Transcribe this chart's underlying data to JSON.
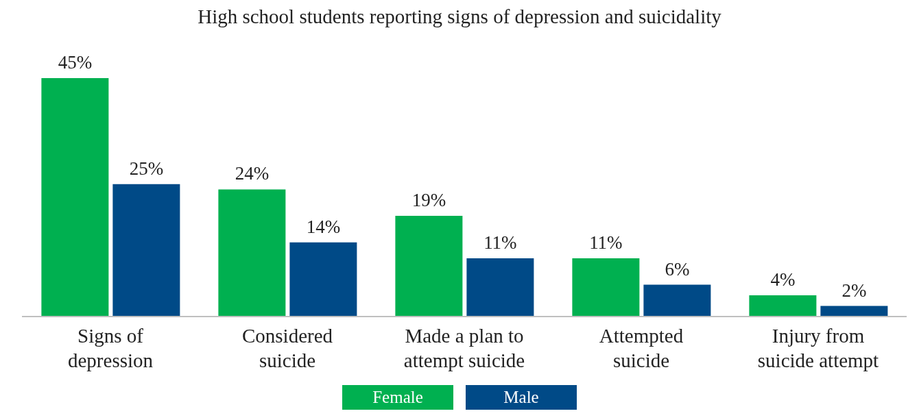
{
  "chart_data": {
    "type": "bar",
    "title": "High school students reporting signs of depression and suicidality",
    "categories": [
      "Signs of depression",
      "Considered suicide",
      "Made a plan to attempt suicide",
      "Attempted suicide",
      "Injury from suicide attempt"
    ],
    "series": [
      {
        "name": "Female",
        "color": "#00b050",
        "values": [
          45,
          24,
          19,
          11,
          4
        ],
        "value_labels": [
          "45%",
          "24%",
          "19%",
          "11%",
          "4%"
        ]
      },
      {
        "name": "Male",
        "color": "#004a87",
        "values": [
          25,
          14,
          11,
          6,
          2
        ],
        "value_labels": [
          "25%",
          "14%",
          "11%",
          "6%",
          "2%"
        ]
      }
    ],
    "legend": "bottom"
  }
}
